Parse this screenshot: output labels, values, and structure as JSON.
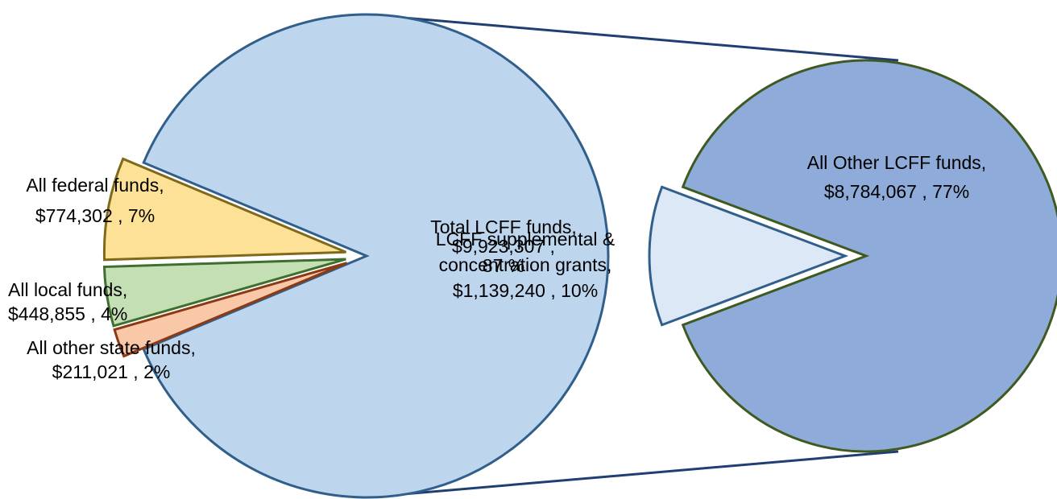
{
  "chart_data": {
    "type": "pie",
    "subtype": "pie-of-pie",
    "primary": {
      "slices": [
        {
          "label": "Total LCFF funds",
          "value": 9923307,
          "percent": 87,
          "value_text": "$9,923,307",
          "percent_text": "87%",
          "color": "#bed5ee"
        },
        {
          "label": "All federal funds",
          "value": 774302,
          "percent": 7,
          "value_text": "$774,302",
          "percent_text": "7%",
          "color": "#fce196"
        },
        {
          "label": "All local funds",
          "value": 448855,
          "percent": 4,
          "value_text": "$448,855",
          "percent_text": "4%",
          "color": "#c5dfb4"
        },
        {
          "label": "All other state funds",
          "value": 211021,
          "percent": 2,
          "value_text": "$211,021",
          "percent_text": "2%",
          "color": "#f8c8a8"
        }
      ]
    },
    "secondary": {
      "parent": "Total LCFF funds",
      "slices": [
        {
          "label": "All Other LCFF funds",
          "value": 8784067,
          "percent": 77,
          "value_text": "$8,784,067",
          "percent_text": "77%",
          "color": "#8eabd9"
        },
        {
          "label": "LCFF supplemental & concentration grants",
          "value": 1139240,
          "percent": 10,
          "value_text": "$1,139,240",
          "percent_text": "10%",
          "color": "#dce8f5"
        }
      ]
    },
    "labels": {
      "federal": [
        "All federal funds,",
        "$774,302 , 7%"
      ],
      "local": [
        "All local funds,",
        "$448,855 , 4%"
      ],
      "state": [
        "All other state funds,",
        "$211,021 , 2%"
      ],
      "lcff_total": [
        "Total LCFF funds,",
        "$9,923,307 ,",
        "87 %"
      ],
      "supplemental": [
        "LCFF supplemental &",
        "concentration grants,",
        "$1,139,240 , 10%"
      ],
      "other_lcff": [
        "All Other LCFF funds,",
        "$8,784,067 , 77%"
      ]
    },
    "legend": "none"
  }
}
